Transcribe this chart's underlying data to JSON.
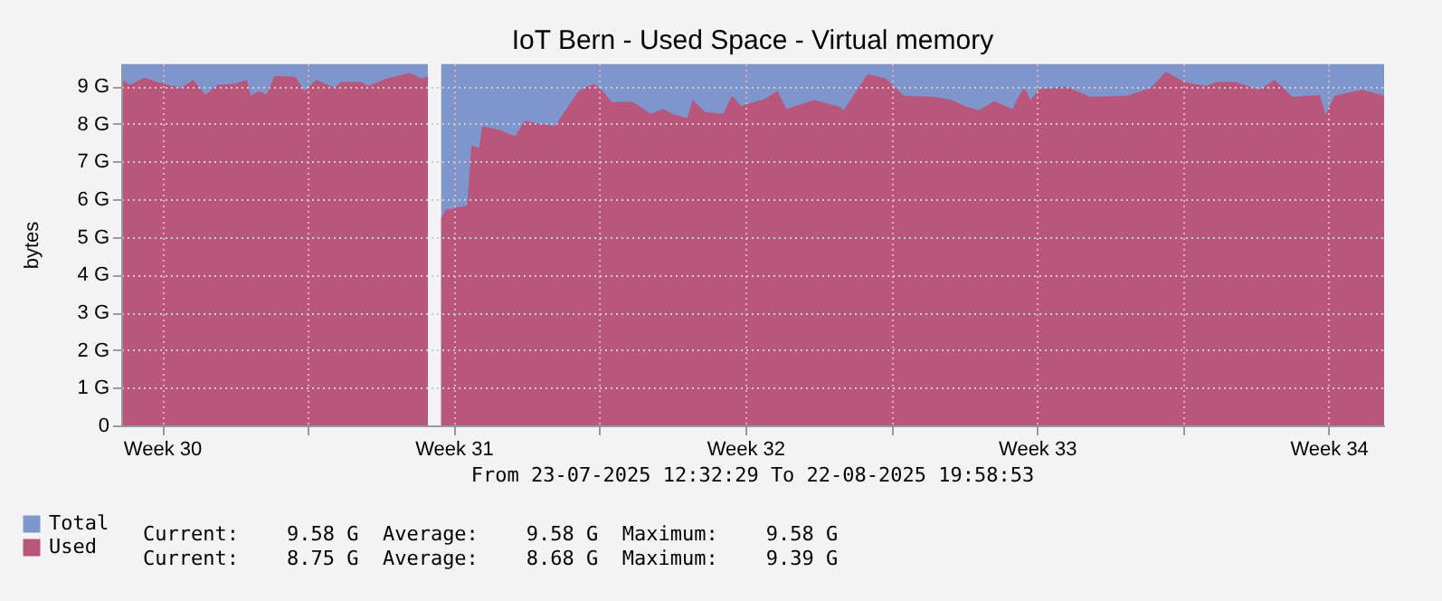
{
  "chart_data": {
    "type": "area",
    "title": "IoT Bern - Used Space - Virtual memory",
    "ylabel": "bytes",
    "xlim": [
      "2025-07-23T12:32",
      "2025-08-22T19:58"
    ],
    "xticks": [
      {
        "value": "2025-07-24T12:00",
        "label": "Week 30"
      },
      {
        "value": "2025-07-28T00:00",
        "label": null
      },
      {
        "value": "2025-07-31T12:00",
        "label": "Week 31"
      },
      {
        "value": "2025-08-04T00:00",
        "label": null
      },
      {
        "value": "2025-08-07T12:00",
        "label": "Week 32"
      },
      {
        "value": "2025-08-11T00:00",
        "label": null
      },
      {
        "value": "2025-08-14T12:00",
        "label": "Week 33"
      },
      {
        "value": "2025-08-18T00:00",
        "label": null
      },
      {
        "value": "2025-08-21T12:00",
        "label": "Week 34"
      }
    ],
    "ylim": [
      0,
      9.6
    ],
    "yticks": [
      0,
      {
        "value": 1,
        "label": "1 G"
      },
      {
        "value": 2,
        "label": "2 G"
      },
      {
        "value": 3,
        "label": "3 G"
      },
      {
        "value": 4,
        "label": "4 G"
      },
      {
        "value": 5,
        "label": "5 G"
      },
      {
        "value": 6,
        "label": "6 G"
      },
      {
        "value": 7,
        "label": "7 G"
      },
      {
        "value": 8,
        "label": "8 G"
      },
      {
        "value": 9,
        "label": "9 G"
      }
    ],
    "grid": true,
    "legend": "bottom left",
    "series": [
      {
        "name": "Total",
        "color": "#7f96cc",
        "x": [
          "2025-07-23T12:32",
          "2025-07-30T21:10",
          "2025-07-31T00:00",
          "2025-07-31T04:50",
          "2025-08-22T19:58"
        ],
        "values": [
          9.58,
          9.58,
          null,
          9.58,
          9.58
        ]
      },
      {
        "name": "Used",
        "color": "#b8567b",
        "x": [
          "2025-07-23T12:32",
          "2025-07-23T17:25",
          "2025-07-24T02:00",
          "2025-07-24T09:00",
          "2025-07-24T23:00",
          "2025-07-25T06:00",
          "2025-07-25T13:00",
          "2025-07-25T20:00",
          "2025-07-26T06:00",
          "2025-07-26T13:00",
          "2025-07-26T15:00",
          "2025-07-26T20:00",
          "2025-07-27T00:00",
          "2025-07-27T05:00",
          "2025-07-27T17:00",
          "2025-07-27T22:00",
          "2025-07-28T05:00",
          "2025-07-28T15:30",
          "2025-07-28T19:00",
          "2025-07-29T07:00",
          "2025-07-29T10:30",
          "2025-07-29T21:00",
          "2025-07-30T10:45",
          "2025-07-30T17:40",
          "2025-07-30T21:10",
          "2025-07-31T00:00",
          "2025-07-31T04:50",
          "2025-07-31T07:40",
          "2025-07-31T19:50",
          "2025-07-31T22:15",
          "2025-08-01T02:40",
          "2025-08-01T04:25",
          "2025-08-01T14:50",
          "2025-08-01T23:30",
          "2025-08-02T04:45",
          "2025-08-02T15:10",
          "2025-08-02T22:10",
          "2025-08-03T05:00",
          "2025-08-03T12:00",
          "2025-08-03T20:40",
          "2025-08-04T01:50",
          "2025-08-04T07:00",
          "2025-08-04T19:10",
          "2025-08-05T05:30",
          "2025-08-05T12:30",
          "2025-08-05T19:30",
          "2025-08-06T02:30",
          "2025-08-06T05:50",
          "2025-08-06T12:50",
          "2025-08-06T23:15",
          "2025-08-07T04:25",
          "2025-08-07T09:40",
          "2025-08-07T23:30",
          "2025-08-08T06:30",
          "2025-08-08T11:45",
          "2025-08-09T03:20",
          "2025-08-09T17:10",
          "2025-08-09T20:40",
          "2025-08-10T10:30",
          "2025-08-10T21:00",
          "2025-08-11T07:20",
          "2025-08-12T00:45",
          "2025-08-12T11:10",
          "2025-08-12T18:00",
          "2025-08-13T02:45",
          "2025-08-13T11:25",
          "2025-08-13T21:50",
          "2025-08-14T01:15",
          "2025-08-14T04:45",
          "2025-08-14T08:15",
          "2025-08-14T13:25",
          "2025-08-15T05:00",
          "2025-08-15T18:55",
          "2025-08-16T15:45",
          "2025-08-17T05:40",
          "2025-08-17T14:20",
          "2025-08-18T00:45",
          "2025-08-18T12:55",
          "2025-08-18T19:50",
          "2025-08-19T06:15",
          "2025-08-19T20:10",
          "2025-08-20T04:50",
          "2025-08-20T15:15",
          "2025-08-21T06:50",
          "2025-08-21T10:20",
          "2025-08-21T15:30",
          "2025-08-22T07:10",
          "2025-08-22T19:58"
        ],
        "values": [
          9.19,
          9.03,
          9.22,
          9.11,
          8.95,
          9.16,
          8.76,
          9.03,
          9.06,
          9.16,
          8.74,
          8.87,
          8.76,
          9.27,
          9.24,
          8.87,
          9.16,
          8.95,
          9.11,
          9.11,
          9.0,
          9.19,
          9.35,
          9.19,
          9.27,
          null,
          5.51,
          5.72,
          5.83,
          7.43,
          7.35,
          7.94,
          7.83,
          7.67,
          8.07,
          7.99,
          7.94,
          8.39,
          8.87,
          9.06,
          8.87,
          8.58,
          8.58,
          8.26,
          8.39,
          8.23,
          8.15,
          8.63,
          8.31,
          8.26,
          8.74,
          8.47,
          8.66,
          8.87,
          8.39,
          8.63,
          8.47,
          8.36,
          9.32,
          9.19,
          8.74,
          8.71,
          8.63,
          8.47,
          8.36,
          8.6,
          8.39,
          8.71,
          8.95,
          8.63,
          8.92,
          8.98,
          8.71,
          8.74,
          8.95,
          9.38,
          9.11,
          9.0,
          9.11,
          9.11,
          8.9,
          9.16,
          8.71,
          8.76,
          8.23,
          8.74,
          8.9,
          8.75
        ]
      }
    ],
    "annotations": [
      "From 23-07-2025 12:32:29 To 22-08-2025 19:58:53",
      "Current:    9.58 G  Average:    9.58 G  Maximum:    9.58 G",
      "Current:    8.75 G  Average:    8.68 G  Maximum:    9.39 G"
    ]
  }
}
